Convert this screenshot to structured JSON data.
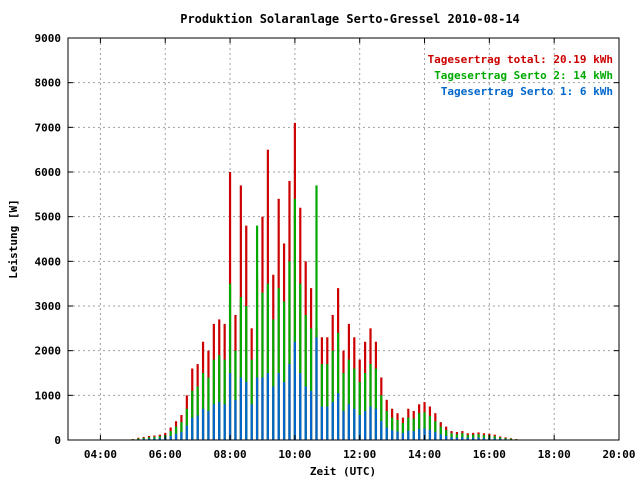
{
  "chart_data": {
    "type": "bar",
    "title": "Produktion Solaranlage Serto-Gressel 2010-08-14",
    "xlabel": "Zeit (UTC)",
    "ylabel": "Leistung [W]",
    "xlim": [
      "03:00",
      "20:00"
    ],
    "ylim": [
      0,
      9000
    ],
    "x_ticks": [
      "04:00",
      "06:00",
      "08:00",
      "10:00",
      "12:00",
      "14:00",
      "16:00",
      "18:00",
      "20:00"
    ],
    "y_ticks": [
      "0",
      "1000",
      "2000",
      "3000",
      "4000",
      "5000",
      "6000",
      "7000",
      "8000",
      "9000"
    ],
    "grid": true,
    "legend_position": "top-right",
    "legend": [
      {
        "label": "Tagesertrag total: 20.19 kWh",
        "color": "#cc0000"
      },
      {
        "label": "Tagesertrag Serto 2: 14 kWh",
        "color": "#00aa00"
      },
      {
        "label": "Tagesertrag Serto 1: 6 kWh",
        "color": "#0066cc"
      }
    ],
    "x": [
      "05:00",
      "05:10",
      "05:20",
      "05:30",
      "05:40",
      "05:50",
      "06:00",
      "06:10",
      "06:20",
      "06:30",
      "06:40",
      "06:50",
      "07:00",
      "07:10",
      "07:20",
      "07:30",
      "07:40",
      "07:50",
      "08:00",
      "08:10",
      "08:20",
      "08:30",
      "08:40",
      "08:50",
      "09:00",
      "09:10",
      "09:20",
      "09:30",
      "09:40",
      "09:50",
      "10:00",
      "10:10",
      "10:20",
      "10:30",
      "10:40",
      "10:50",
      "11:00",
      "11:10",
      "11:20",
      "11:30",
      "11:40",
      "11:50",
      "12:00",
      "12:10",
      "12:20",
      "12:30",
      "12:40",
      "12:50",
      "13:00",
      "13:10",
      "13:20",
      "13:30",
      "13:40",
      "13:50",
      "14:00",
      "14:10",
      "14:20",
      "14:30",
      "14:40",
      "14:50",
      "15:00",
      "15:10",
      "15:20",
      "15:30",
      "15:40",
      "15:50",
      "16:00",
      "16:10",
      "16:20",
      "16:30",
      "16:40",
      "16:50",
      "17:00"
    ],
    "series": [
      {
        "name": "Tagesertrag total: 20.19 kWh",
        "color": "#cc0000",
        "values": [
          20,
          50,
          70,
          90,
          100,
          120,
          160,
          280,
          420,
          560,
          1000,
          1600,
          1700,
          2200,
          2000,
          2600,
          2700,
          2600,
          6000,
          2800,
          5700,
          4800,
          2500,
          3600,
          5000,
          6500,
          3700,
          5400,
          4400,
          5800,
          7100,
          5200,
          4000,
          3400,
          2500,
          2300,
          2300,
          2800,
          3400,
          2000,
          2600,
          2300,
          1800,
          2200,
          2500,
          2200,
          1400,
          900,
          700,
          600,
          500,
          700,
          650,
          800,
          850,
          750,
          600,
          400,
          300,
          200,
          180,
          200,
          150,
          160,
          170,
          150,
          140,
          120,
          80,
          60,
          40,
          20,
          10
        ]
      },
      {
        "name": "Tagesertrag Serto 2: 14 kWh",
        "color": "#00aa00",
        "values": [
          15,
          35,
          50,
          60,
          70,
          85,
          110,
          200,
          300,
          400,
          700,
          1100,
          1200,
          1500,
          1400,
          1800,
          1900,
          1800,
          3500,
          2000,
          3200,
          3000,
          1800,
          4800,
          3300,
          3500,
          2700,
          3400,
          3100,
          4000,
          5400,
          3500,
          2800,
          2500,
          5700,
          1700,
          1700,
          2000,
          2400,
          1500,
          1800,
          1600,
          1300,
          1500,
          1700,
          1600,
          1000,
          650,
          500,
          450,
          380,
          500,
          480,
          600,
          620,
          540,
          420,
          300,
          220,
          150,
          130,
          150,
          110,
          120,
          130,
          110,
          100,
          85,
          60,
          40,
          30,
          15,
          8
        ]
      },
      {
        "name": "Tagesertrag Serto 1: 6 kWh",
        "color": "#0066cc",
        "values": [
          8,
          15,
          25,
          30,
          35,
          40,
          55,
          90,
          140,
          180,
          320,
          500,
          550,
          700,
          650,
          800,
          850,
          800,
          1500,
          900,
          1400,
          1300,
          800,
          1400,
          1400,
          1500,
          1200,
          1500,
          1300,
          1700,
          2200,
          1500,
          1200,
          1100,
          2300,
          750,
          750,
          850,
          1050,
          650,
          800,
          700,
          560,
          650,
          750,
          700,
          430,
          280,
          220,
          190,
          160,
          210,
          200,
          250,
          260,
          230,
          180,
          130,
          95,
          65,
          55,
          65,
          48,
          52,
          56,
          48,
          44,
          36,
          26,
          18,
          12,
          6,
          3
        ]
      }
    ]
  }
}
